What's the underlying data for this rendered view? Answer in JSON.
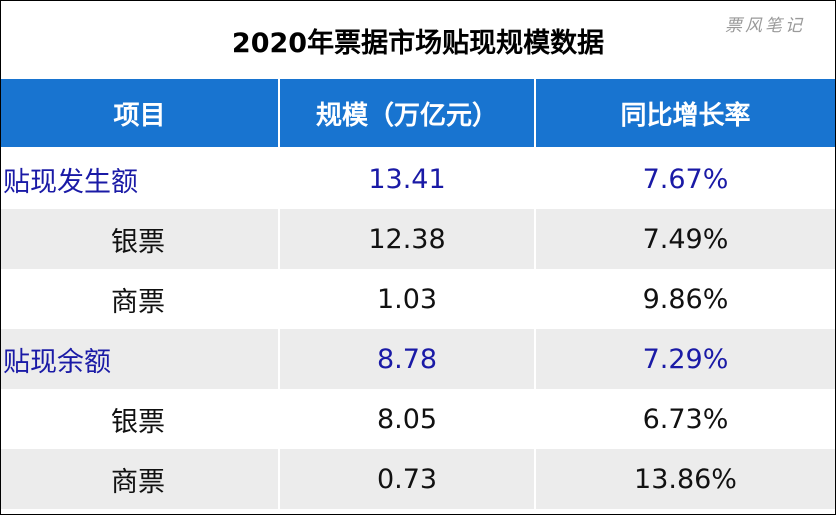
{
  "title": "2020年票据市场贴现规模数据",
  "watermark": "票风笔记",
  "colors": {
    "header_bg": "#1874d0",
    "header_text": "#ffffff",
    "total_text": "#1a1aa6",
    "row_alt_bg": "#ececec"
  },
  "chart_data": {
    "type": "table",
    "title": "2020年票据市场贴现规模数据",
    "columns": [
      "项目",
      "规模（万亿元）",
      "同比增长率"
    ],
    "rows": [
      {
        "item": "贴现发生额",
        "scale": "13.41",
        "growth": "7.67%",
        "level": "total"
      },
      {
        "item": "银票",
        "scale": "12.38",
        "growth": "7.49%",
        "level": "sub"
      },
      {
        "item": "商票",
        "scale": "1.03",
        "growth": "9.86%",
        "level": "sub"
      },
      {
        "item": "贴现余额",
        "scale": "8.78",
        "growth": "7.29%",
        "level": "total"
      },
      {
        "item": "银票",
        "scale": "8.05",
        "growth": "6.73%",
        "level": "sub"
      },
      {
        "item": "商票",
        "scale": "0.73",
        "growth": "13.86%",
        "level": "sub"
      }
    ]
  }
}
